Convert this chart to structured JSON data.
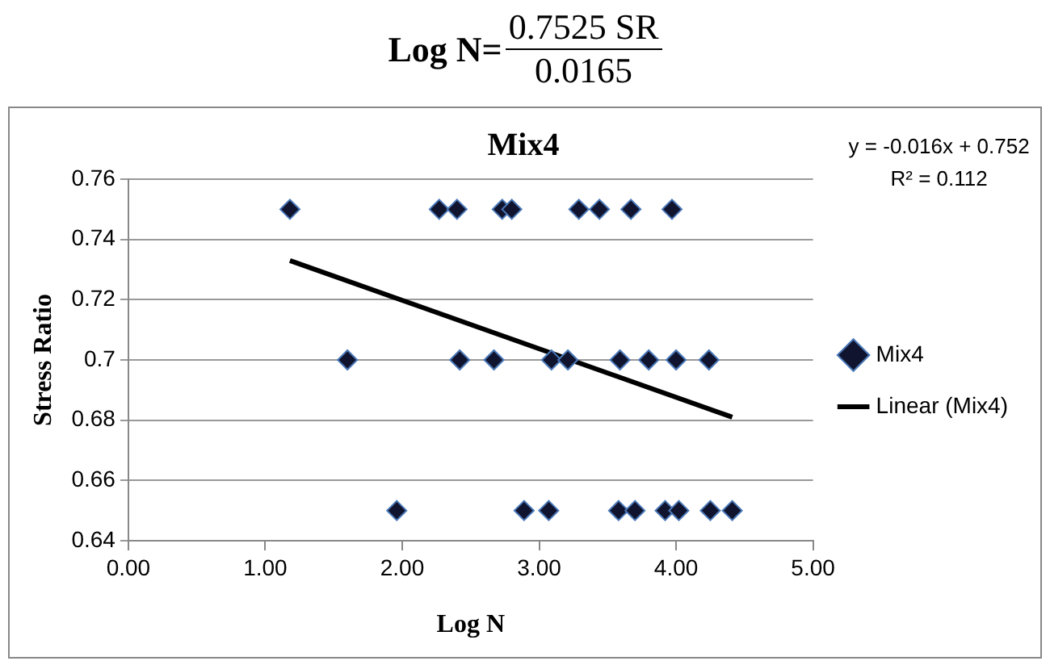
{
  "chart_data": {
    "type": "scatter",
    "title": "Mix4",
    "xlabel": "Log N",
    "ylabel": "Stress Ratio",
    "annotations": [
      "Log N=",
      "0.7525   SR",
      "0.0165",
      "y = -0.016x + 0.752",
      "R² = 0.112"
    ],
    "series": [
      {
        "name": "Mix4",
        "color": "#10142e",
        "marker": "diamond",
        "x": [
          1.18,
          2.27,
          2.4,
          2.73,
          2.8,
          3.29,
          3.44,
          3.67,
          3.97,
          1.6,
          2.42,
          2.67,
          3.09,
          3.21,
          3.59,
          3.8,
          4.0,
          4.24,
          1.96,
          2.89,
          3.07,
          3.58,
          3.7,
          3.92,
          4.02,
          4.25,
          4.41
        ],
        "values": [
          0.75,
          0.75,
          0.75,
          0.75,
          0.75,
          0.75,
          0.75,
          0.75,
          0.75,
          0.7,
          0.7,
          0.7,
          0.7,
          0.7,
          0.7,
          0.7,
          0.7,
          0.7,
          0.65,
          0.65,
          0.65,
          0.65,
          0.65,
          0.65,
          0.65,
          0.65,
          0.65
        ]
      },
      {
        "name": "Linear (Mix4)",
        "type": "line",
        "color": "#000000",
        "marker": "none",
        "x": [
          1.18,
          4.41
        ],
        "values": [
          0.733,
          0.681
        ]
      }
    ],
    "xlim": [
      0,
      5
    ],
    "xticks": [
      {
        "value": 0,
        "label": "0.00"
      },
      {
        "value": 1,
        "label": "1.00"
      },
      {
        "value": 2,
        "label": "2.00"
      },
      {
        "value": 3,
        "label": "3.00"
      },
      {
        "value": 4,
        "label": "4.00"
      },
      {
        "value": 5,
        "label": "5.00"
      }
    ],
    "ylim": [
      0.64,
      0.76
    ],
    "yticks": [
      0.64,
      0.66,
      0.68,
      0.7,
      0.72,
      0.74,
      0.76
    ],
    "grid": "y",
    "legend": "right"
  }
}
